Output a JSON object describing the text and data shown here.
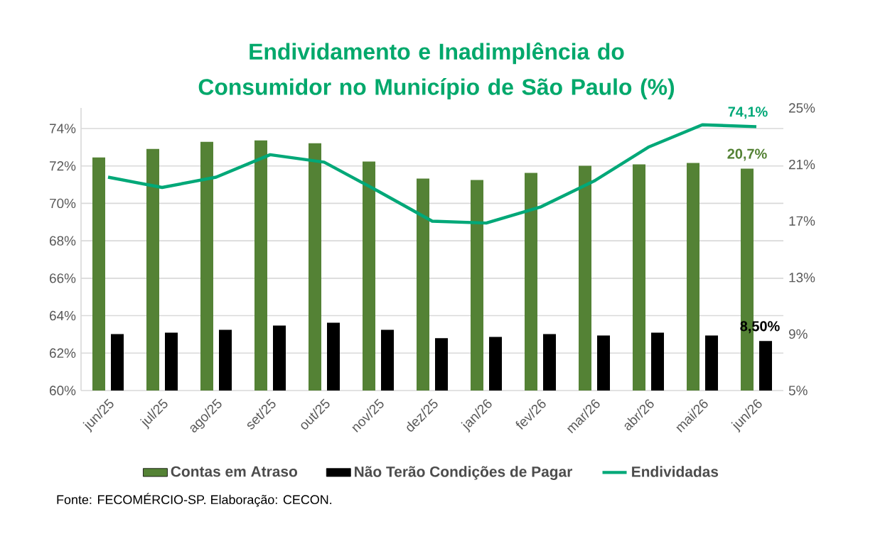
{
  "chart_data": {
    "type": "bar",
    "title": "Endividamento e Inadimplência do Consumidor no Município de São Paulo (%)",
    "categories": [
      "jun/25",
      "jul/25",
      "ago/25",
      "set/25",
      "out/25",
      "nov/25",
      "dez/25",
      "jan/26",
      "fev/26",
      "mar/26",
      "abr/26",
      "mai/26",
      "jun/26"
    ],
    "series": [
      {
        "name": "Contas em Atraso",
        "axis": "y2",
        "color": "#548235",
        "values": [
          21.5,
          22.1,
          22.6,
          22.7,
          22.5,
          21.2,
          20.0,
          19.9,
          20.4,
          20.9,
          21.0,
          21.1,
          20.7
        ],
        "value_labels": [
          null,
          null,
          null,
          null,
          null,
          null,
          null,
          null,
          null,
          null,
          null,
          null,
          "20,7%"
        ]
      },
      {
        "name": "Não Terão Condições de Pagar",
        "axis": "y2",
        "color": "#000000",
        "values": [
          9.0,
          9.1,
          9.3,
          9.6,
          9.8,
          9.3,
          8.7,
          8.8,
          9.0,
          8.9,
          9.1,
          8.9,
          8.5
        ],
        "value_labels": [
          null,
          null,
          null,
          null,
          null,
          null,
          null,
          null,
          null,
          null,
          null,
          null,
          "8,50%"
        ]
      },
      {
        "name": "Endividadas",
        "type": "line",
        "color": "#00a878",
        "values": [
          71.4,
          70.85,
          71.4,
          72.6,
          72.2,
          70.65,
          69.05,
          68.95,
          69.8,
          71.2,
          73.0,
          74.2,
          74.1
        ],
        "value_labels": [
          null,
          null,
          null,
          null,
          null,
          null,
          null,
          null,
          null,
          null,
          null,
          null,
          "74,1%"
        ]
      }
    ],
    "ylim": [
      60,
      75.1
    ],
    "yticks": [
      {
        "value": 60,
        "label": "60%"
      },
      {
        "value": 62,
        "label": "62%"
      },
      {
        "value": 64,
        "label": "64%"
      },
      {
        "value": 66,
        "label": "66%"
      },
      {
        "value": 68,
        "label": "68%"
      },
      {
        "value": 70,
        "label": "70%"
      },
      {
        "value": 72,
        "label": "72%"
      },
      {
        "value": 74,
        "label": "74%"
      }
    ],
    "y2lim": [
      5,
      25
    ],
    "y2ticks": [
      {
        "value": 5,
        "label": "5%"
      },
      {
        "value": 9,
        "label": "9%"
      },
      {
        "value": 13,
        "label": "13%"
      },
      {
        "value": 17,
        "label": "17%"
      },
      {
        "value": 21,
        "label": "21%"
      },
      {
        "value": 25,
        "label": "25%"
      }
    ],
    "grid": "y",
    "legend": "bottom",
    "annotations": [
      "Fonte: FECOMÉRCIO-SP. Elaboração: CECON."
    ]
  }
}
